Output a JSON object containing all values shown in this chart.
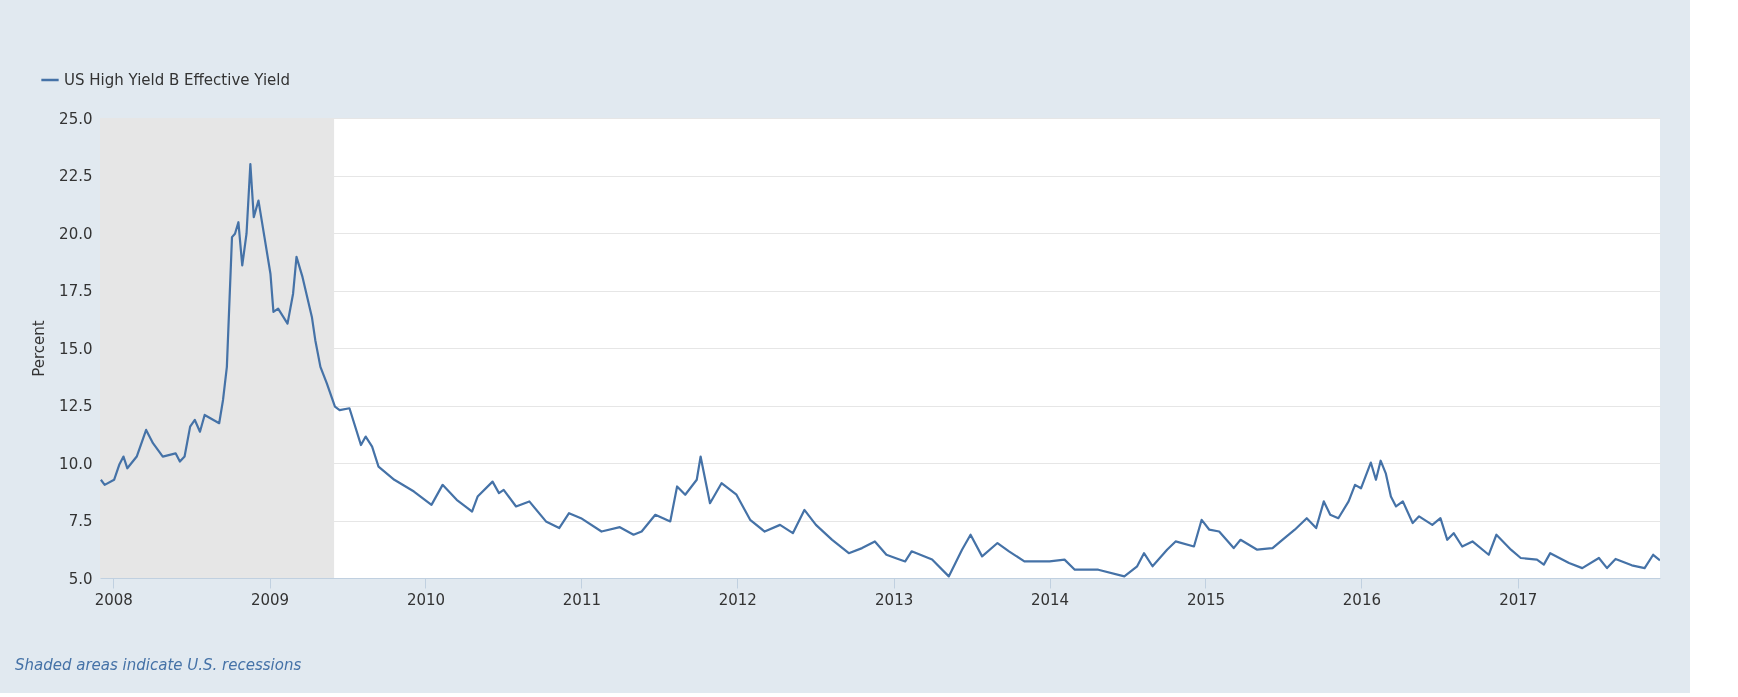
{
  "chart_data": {
    "type": "line",
    "ylabel": "Percent",
    "annotations": [
      "Shaded areas indicate U.S. recessions"
    ],
    "x": [
      "2007-12-03",
      "2007-12-12",
      "2008-01-03",
      "2008-01-15",
      "2008-01-25",
      "2008-02-03",
      "2008-02-25",
      "2008-03-18",
      "2008-04-03",
      "2008-04-26",
      "2008-05-26",
      "2008-06-05",
      "2008-06-16",
      "2008-06-29",
      "2008-07-10",
      "2008-07-22",
      "2008-08-02",
      "2008-09-05",
      "2008-09-14",
      "2008-09-23",
      "2008-10-05",
      "2008-10-12",
      "2008-10-20",
      "2008-10-29",
      "2008-11-08",
      "2008-11-17",
      "2008-11-25",
      "2008-12-06",
      "2008-12-20",
      "2009-01-03",
      "2009-01-10",
      "2009-01-21",
      "2009-02-12",
      "2009-02-25",
      "2009-03-05",
      "2009-03-19",
      "2009-04-10",
      "2009-04-18",
      "2009-04-30",
      "2009-05-15",
      "2009-06-03",
      "2009-06-14",
      "2009-07-07",
      "2009-08-03",
      "2009-08-14",
      "2009-08-29",
      "2009-09-13",
      "2009-10-20",
      "2009-12-05",
      "2010-01-15",
      "2010-02-10",
      "2010-03-15",
      "2010-04-20",
      "2010-05-03",
      "2010-06-07",
      "2010-06-22",
      "2010-07-03",
      "2010-08-01",
      "2010-09-01",
      "2010-10-10",
      "2010-11-10",
      "2010-12-03",
      "2010-12-31",
      "2011-02-17",
      "2011-04-01",
      "2011-05-03",
      "2011-05-22",
      "2011-06-23",
      "2011-07-28",
      "2011-08-13",
      "2011-09-01",
      "2011-09-28",
      "2011-10-07",
      "2011-10-29",
      "2011-11-25",
      "2011-12-30",
      "2012-01-31",
      "2012-03-05",
      "2012-04-10",
      "2012-05-10",
      "2012-06-06",
      "2012-07-03",
      "2012-08-10",
      "2012-09-18",
      "2012-10-19",
      "2012-11-18",
      "2012-12-15",
      "2013-01-08",
      "2013-01-28",
      "2013-02-12",
      "2013-04-01",
      "2013-05-10",
      "2013-06-10",
      "2013-06-30",
      "2013-07-27",
      "2013-09-01",
      "2013-09-28",
      "2013-11-03",
      "2014-01-01",
      "2014-02-05",
      "2014-03-01",
      "2014-04-25",
      "2014-06-25",
      "2014-07-25",
      "2014-08-10",
      "2014-08-30",
      "2014-10-03",
      "2014-10-23",
      "2014-12-05",
      "2014-12-23",
      "2015-01-10",
      "2015-02-02",
      "2015-03-08",
      "2015-03-24",
      "2015-05-02",
      "2015-06-07",
      "2015-06-30",
      "2015-07-29",
      "2015-08-26",
      "2015-09-17",
      "2015-10-05",
      "2015-10-20",
      "2015-11-08",
      "2015-12-02",
      "2015-12-17",
      "2015-12-31",
      "2016-01-23",
      "2016-02-04",
      "2016-02-15",
      "2016-02-27",
      "2016-03-10",
      "2016-03-22",
      "2016-04-07",
      "2016-04-30",
      "2016-05-15",
      "2016-06-15",
      "2016-07-04",
      "2016-07-20",
      "2016-08-04",
      "2016-08-24",
      "2016-09-17",
      "2016-10-25",
      "2016-11-12",
      "2016-12-16",
      "2017-01-08",
      "2017-02-15",
      "2017-03-03",
      "2017-03-18",
      "2017-05-01",
      "2017-06-01",
      "2017-07-10",
      "2017-07-29",
      "2017-08-18",
      "2017-09-25",
      "2017-10-25",
      "2017-11-14",
      "2017-11-30"
    ],
    "series": [
      {
        "name": "US High Yield B Effective Yield",
        "color": "#4572a7",
        "values": [
          9.27,
          9.05,
          9.27,
          9.92,
          10.28,
          9.77,
          10.28,
          11.44,
          10.86,
          10.28,
          10.42,
          10.06,
          10.28,
          11.58,
          11.87,
          11.36,
          12.09,
          11.73,
          12.74,
          14.18,
          19.82,
          19.97,
          20.47,
          18.59,
          19.97,
          23.0,
          20.69,
          21.41,
          19.82,
          18.23,
          16.57,
          16.71,
          16.06,
          17.36,
          18.96,
          18.09,
          16.35,
          15.34,
          14.18,
          13.46,
          12.45,
          12.3,
          12.38,
          10.78,
          11.15,
          10.71,
          9.84,
          9.27,
          8.76,
          8.18,
          9.05,
          8.4,
          7.89,
          8.54,
          9.19,
          8.69,
          8.83,
          8.11,
          8.33,
          7.46,
          7.17,
          7.82,
          7.6,
          7.02,
          7.21,
          6.88,
          7.02,
          7.75,
          7.46,
          8.98,
          8.62,
          9.27,
          10.28,
          8.25,
          9.12,
          8.62,
          7.53,
          7.02,
          7.31,
          6.95,
          7.96,
          7.31,
          6.66,
          6.08,
          6.3,
          6.59,
          6.01,
          5.85,
          5.72,
          6.16,
          5.8,
          5.07,
          6.23,
          6.88,
          5.94,
          6.52,
          6.16,
          5.72,
          5.72,
          5.8,
          5.36,
          5.36,
          5.07,
          5.51,
          6.08,
          5.51,
          6.23,
          6.59,
          6.37,
          7.53,
          7.1,
          7.02,
          6.3,
          6.66,
          6.23,
          6.3,
          6.66,
          7.1,
          7.6,
          7.17,
          8.33,
          7.75,
          7.6,
          8.33,
          9.05,
          8.9,
          10.02,
          9.27,
          10.1,
          9.55,
          8.54,
          8.11,
          8.33,
          7.39,
          7.68,
          7.31,
          7.6,
          6.66,
          6.95,
          6.37,
          6.59,
          6.01,
          6.88,
          6.23,
          5.87,
          5.8,
          5.58,
          6.08,
          5.65,
          5.43,
          5.87,
          5.43,
          5.83,
          5.55,
          5.43,
          6.01,
          5.77
        ]
      }
    ],
    "xlim": [
      "2007-12-01",
      "2017-11-30"
    ],
    "xticks": [
      {
        "value": "2008-01-01",
        "label": "2008"
      },
      {
        "value": "2009-01-01",
        "label": "2009"
      },
      {
        "value": "2010-01-01",
        "label": "2010"
      },
      {
        "value": "2011-01-01",
        "label": "2011"
      },
      {
        "value": "2012-01-01",
        "label": "2012"
      },
      {
        "value": "2013-01-01",
        "label": "2013"
      },
      {
        "value": "2014-01-01",
        "label": "2014"
      },
      {
        "value": "2015-01-01",
        "label": "2015"
      },
      {
        "value": "2016-01-01",
        "label": "2016"
      },
      {
        "value": "2017-01-01",
        "label": "2017"
      }
    ],
    "ylim": [
      5,
      25
    ],
    "yticks": [
      {
        "value": 5,
        "label": "5.0"
      },
      {
        "value": 7.5,
        "label": "7.5"
      },
      {
        "value": 10,
        "label": "10.0"
      },
      {
        "value": 12.5,
        "label": "12.5"
      },
      {
        "value": 15,
        "label": "15.0"
      },
      {
        "value": 17.5,
        "label": "17.5"
      },
      {
        "value": 20,
        "label": "20.0"
      },
      {
        "value": 22.5,
        "label": "22.5"
      },
      {
        "value": 25,
        "label": "25.0"
      }
    ],
    "bands": [
      {
        "axis": "x",
        "from": "2007-12-01",
        "to": "2009-06-01",
        "color": "#e6e6e6"
      }
    ],
    "grid": "y",
    "legend": "top left",
    "line_style": "solid"
  }
}
